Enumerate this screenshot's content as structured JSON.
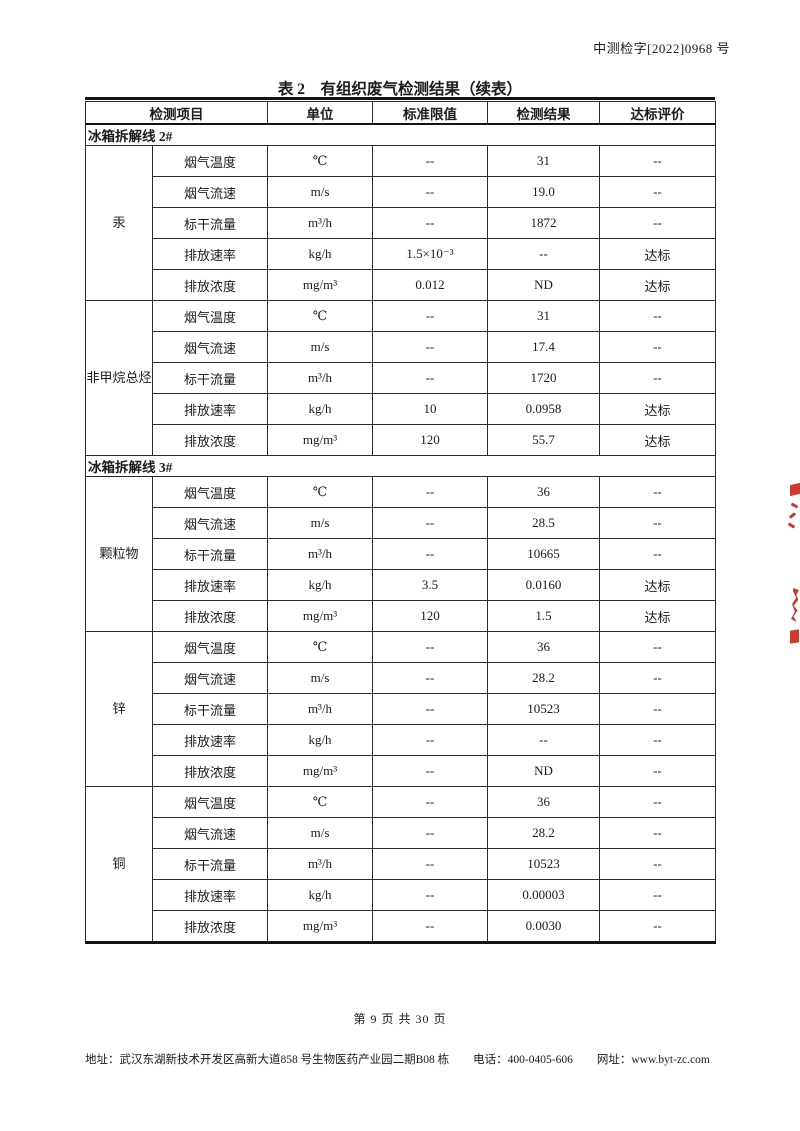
{
  "page": {
    "doc_number": "中测检字[2022]0968 号",
    "title": "表 2　有组织废气检测结果（续表）",
    "page_number": "第 9 页 共 30 页",
    "footer": {
      "address": "地址：武汉东湖新技术开发区高新大道858 号生物医药产业园二期B08 栋",
      "phone": "电话：400-0405-606",
      "website": "网址：www.byt-zc.com"
    }
  },
  "table": {
    "headers": [
      "检测项目",
      "单位",
      "标准限值",
      "检测结果",
      "达标评价"
    ],
    "sections": [
      {
        "label": "冰箱拆解线 2#",
        "groups": [
          {
            "name": "汞",
            "rows": [
              [
                "烟气温度",
                "℃",
                "--",
                "31",
                "--"
              ],
              [
                "烟气流速",
                "m/s",
                "--",
                "19.0",
                "--"
              ],
              [
                "标干流量",
                "m³/h",
                "--",
                "1872",
                "--"
              ],
              [
                "排放速率",
                "kg/h",
                "1.5×10⁻³",
                "--",
                "达标"
              ],
              [
                "排放浓度",
                "mg/m³",
                "0.012",
                "ND",
                "达标"
              ]
            ]
          },
          {
            "name": "非甲烷总烃",
            "rows": [
              [
                "烟气温度",
                "℃",
                "--",
                "31",
                "--"
              ],
              [
                "烟气流速",
                "m/s",
                "--",
                "17.4",
                "--"
              ],
              [
                "标干流量",
                "m³/h",
                "--",
                "1720",
                "--"
              ],
              [
                "排放速率",
                "kg/h",
                "10",
                "0.0958",
                "达标"
              ],
              [
                "排放浓度",
                "mg/m³",
                "120",
                "55.7",
                "达标"
              ]
            ]
          }
        ]
      },
      {
        "label": "冰箱拆解线 3#",
        "groups": [
          {
            "name": "颗粒物",
            "rows": [
              [
                "烟气温度",
                "℃",
                "--",
                "36",
                "--"
              ],
              [
                "烟气流速",
                "m/s",
                "--",
                "28.5",
                "--"
              ],
              [
                "标干流量",
                "m³/h",
                "--",
                "10665",
                "--"
              ],
              [
                "排放速率",
                "kg/h",
                "3.5",
                "0.0160",
                "达标"
              ],
              [
                "排放浓度",
                "mg/m³",
                "120",
                "1.5",
                "达标"
              ]
            ]
          },
          {
            "name": "锌",
            "rows": [
              [
                "烟气温度",
                "℃",
                "--",
                "36",
                "--"
              ],
              [
                "烟气流速",
                "m/s",
                "--",
                "28.2",
                "--"
              ],
              [
                "标干流量",
                "m³/h",
                "--",
                "10523",
                "--"
              ],
              [
                "排放速率",
                "kg/h",
                "--",
                "--",
                "--"
              ],
              [
                "排放浓度",
                "mg/m³",
                "--",
                "ND",
                "--"
              ]
            ]
          },
          {
            "name": "铜",
            "rows": [
              [
                "烟气温度",
                "℃",
                "--",
                "36",
                "--"
              ],
              [
                "烟气流速",
                "m/s",
                "--",
                "28.2",
                "--"
              ],
              [
                "标干流量",
                "m³/h",
                "--",
                "10523",
                "--"
              ],
              [
                "排放速率",
                "kg/h",
                "--",
                "0.00003",
                "--"
              ],
              [
                "排放浓度",
                "mg/m³",
                "--",
                "0.0030",
                "--"
              ]
            ]
          }
        ]
      }
    ]
  },
  "stamp": {
    "color": "#cf3a2e"
  }
}
